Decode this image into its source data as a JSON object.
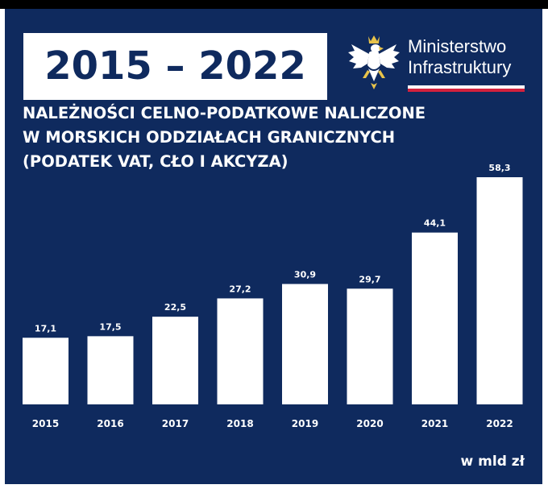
{
  "header": {
    "years": "2015 – 2022",
    "ministry_line1": "Ministerstwo",
    "ministry_line2": "Infrastruktury"
  },
  "colors": {
    "background": "#0f2a5e",
    "bars": "#ffffff",
    "flag_red": "#d4213d"
  },
  "icons": {
    "emblem": "white-eagle-emblem-icon"
  },
  "chart_data": {
    "type": "bar",
    "title_lines": [
      "NALEŻNOŚCI CELNO-PODATKOWE NALICZONE",
      "W MORSKICH ODDZIAŁACH GRANICZNYCH",
      "(PODATEK VAT, CŁO I AKCYZA)"
    ],
    "categories": [
      "2015",
      "2016",
      "2017",
      "2018",
      "2019",
      "2020",
      "2021",
      "2022"
    ],
    "values": [
      17.1,
      17.5,
      22.5,
      27.2,
      30.9,
      29.7,
      44.1,
      58.3
    ],
    "value_labels": [
      "17,1",
      "17,5",
      "22,5",
      "27,2",
      "30,9",
      "29,7",
      "44,1",
      "58,3"
    ],
    "unit": "w mld zł",
    "ylim": [
      0,
      58.3
    ],
    "grid": false,
    "legend": "none"
  }
}
